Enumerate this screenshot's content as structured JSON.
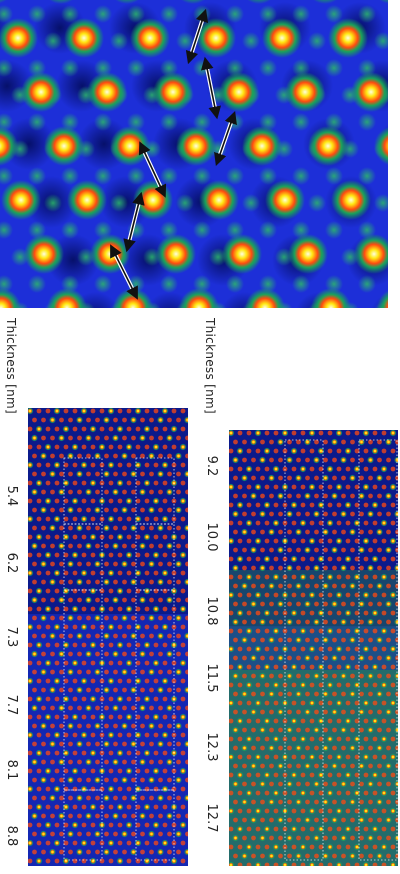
{
  "axis_label": "Thickness [nm]",
  "left_thickness_values": [
    "5.4",
    "6.2",
    "7.3",
    "7.7",
    "8.1",
    "8.8"
  ],
  "right_thickness_values": [
    "9.2",
    "10.0",
    "10.8",
    "11.5",
    "12.3",
    "12.7"
  ],
  "colors": {
    "background_deep": "#06106a",
    "background": "#1d2fd8",
    "halo": "#1aa35a",
    "atom_mid": "#ff4a10",
    "atom_core": "#ffe812",
    "green_field": "#2e9b3a",
    "arrow": "#ffffff",
    "grid_lines": "#ffffff"
  }
}
